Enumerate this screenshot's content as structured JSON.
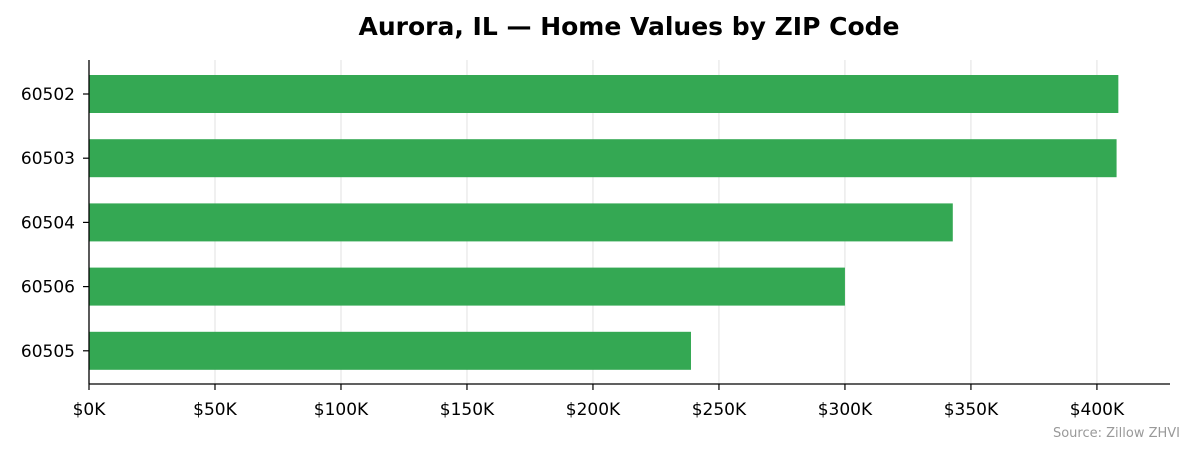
{
  "colors": {
    "bar": "#34a853",
    "grid": "#e6e6e6",
    "axis": "#000000",
    "source_text": "#999999"
  },
  "source": "Source: Zillow ZHVI",
  "chart_data": {
    "type": "bar",
    "orientation": "horizontal",
    "title": "Aurora, IL — Home Values by ZIP Code",
    "xlabel": "",
    "ylabel": "",
    "categories": [
      "60502",
      "60503",
      "60504",
      "60506",
      "60505"
    ],
    "values": [
      408500,
      407800,
      342800,
      300000,
      238900
    ],
    "xlim": [
      0,
      429000
    ],
    "xticks": [
      0,
      50000,
      100000,
      150000,
      200000,
      250000,
      300000,
      350000,
      400000
    ],
    "xtick_labels": [
      "$0K",
      "$50K",
      "$100K",
      "$150K",
      "$200K",
      "$250K",
      "$300K",
      "$350K",
      "$400K"
    ],
    "grid": "vertical",
    "legend": "none"
  }
}
